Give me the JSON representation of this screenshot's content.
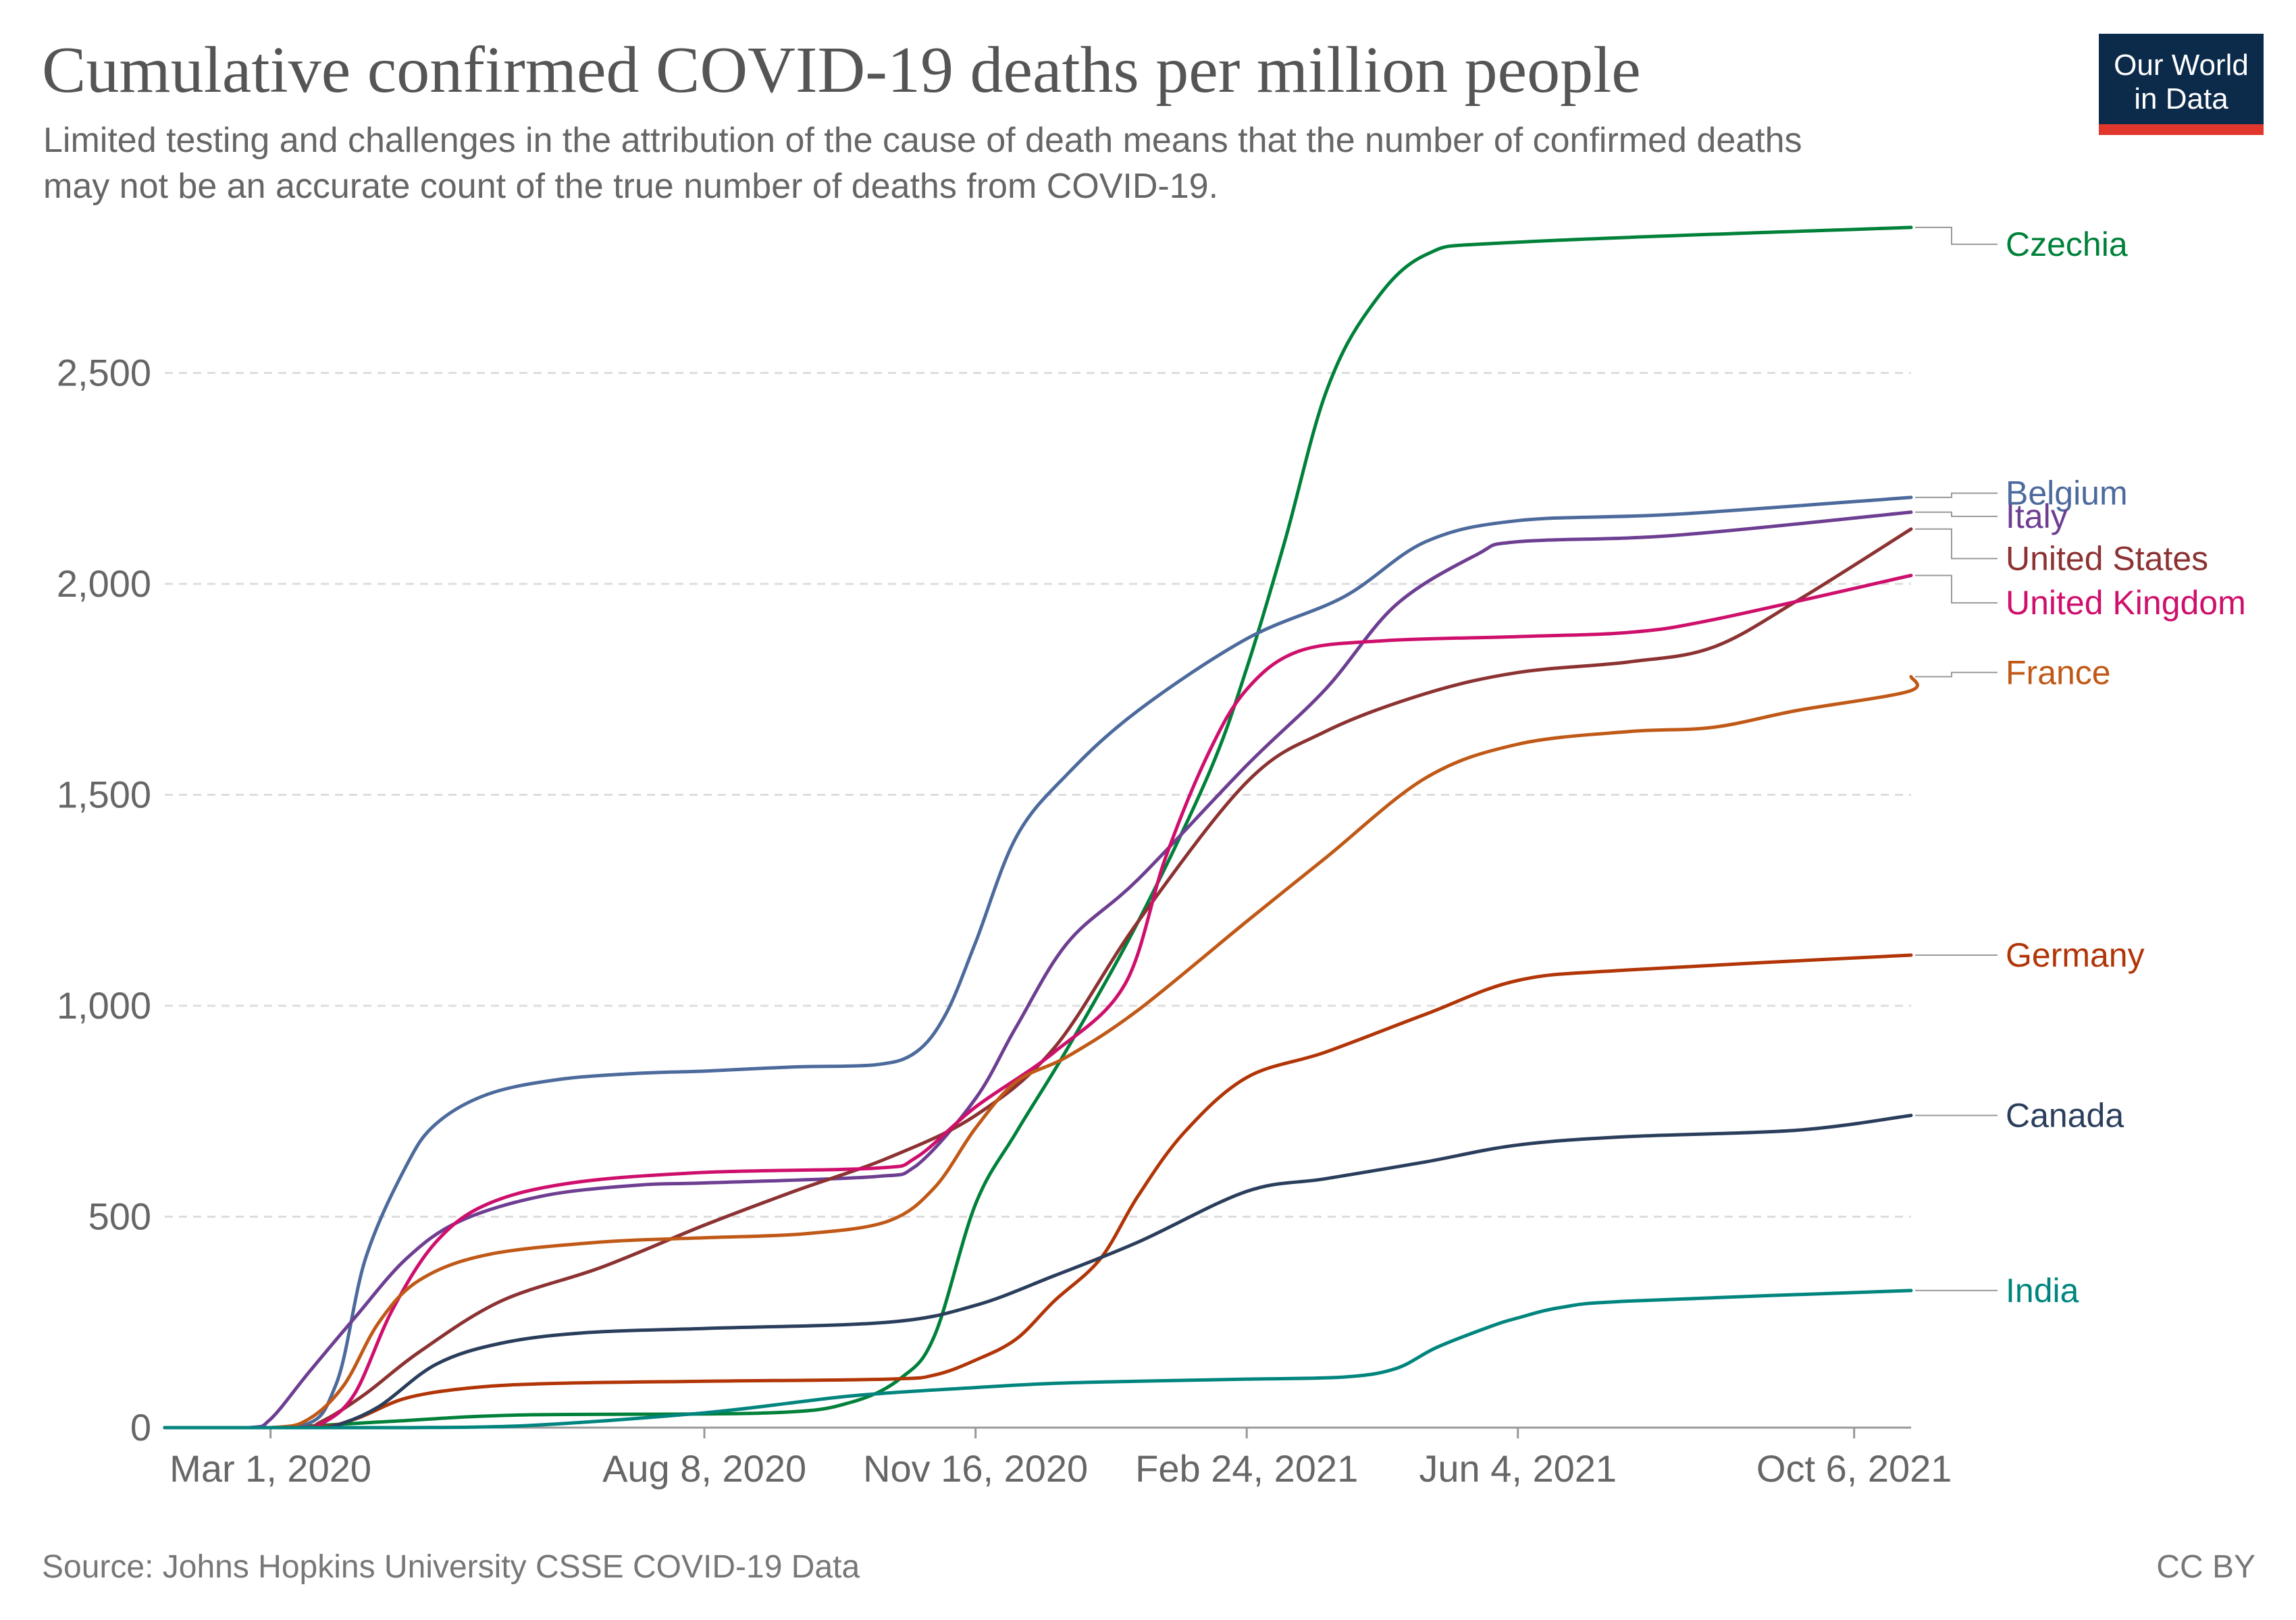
{
  "header": {
    "title": "Cumulative confirmed COVID-19 deaths per million people",
    "subtitle_line1": "Limited testing and challenges in the attribution of the cause of death means that the number of confirmed deaths",
    "subtitle_line2": "may not be an accurate count of the true number of deaths from COVID-19.",
    "logo_line1": "Our World",
    "logo_line2": "in Data"
  },
  "footer": {
    "source": "Source: Johns Hopkins University CSSE COVID-19 Data",
    "license": "CC BY"
  },
  "chart_data": {
    "type": "line",
    "title": "Cumulative confirmed COVID-19 deaths per million people",
    "xlabel": "",
    "ylabel": "",
    "x_range": [
      "2020-01-22",
      "2021-10-27"
    ],
    "ylim": [
      0,
      2800
    ],
    "y_ticks": [
      0,
      500,
      1000,
      1500,
      2000,
      2500
    ],
    "y_tick_labels": [
      "0",
      "500",
      "1,000",
      "1,500",
      "2,000",
      "2,500"
    ],
    "x_ticks": [
      "2020-03-01",
      "2020-08-08",
      "2020-11-16",
      "2021-02-24",
      "2021-06-04",
      "2021-10-06"
    ],
    "x_tick_labels": [
      "Mar 1, 2020",
      "Aug 8, 2020",
      "Nov 16, 2020",
      "Feb 24, 2021",
      "Jun 4, 2021",
      "Oct 6, 2021"
    ],
    "grid": "horizontal dashed",
    "legend": "labels at line ends, right",
    "series": [
      {
        "name": "Czechia",
        "color": "#00813a",
        "label_value": 2805,
        "points": [
          [
            "2020-01-22",
            0
          ],
          [
            "2020-03-01",
            0
          ],
          [
            "2020-04-15",
            15
          ],
          [
            "2020-06-01",
            30
          ],
          [
            "2020-09-01",
            35
          ],
          [
            "2020-10-01",
            60
          ],
          [
            "2020-10-20",
            120
          ],
          [
            "2020-11-01",
            220
          ],
          [
            "2020-11-16",
            530
          ],
          [
            "2020-12-01",
            700
          ],
          [
            "2020-12-20",
            900
          ],
          [
            "2021-01-15",
            1200
          ],
          [
            "2021-02-10",
            1550
          ],
          [
            "2021-02-24",
            1800
          ],
          [
            "2021-03-10",
            2100
          ],
          [
            "2021-03-25",
            2450
          ],
          [
            "2021-04-10",
            2650
          ],
          [
            "2021-05-01",
            2780
          ],
          [
            "2021-06-04",
            2810
          ],
          [
            "2021-10-27",
            2845
          ]
        ]
      },
      {
        "name": "Belgium",
        "color": "#4c6a9c",
        "label_value": 2215,
        "points": [
          [
            "2020-01-22",
            0
          ],
          [
            "2020-03-10",
            0
          ],
          [
            "2020-03-25",
            100
          ],
          [
            "2020-04-05",
            400
          ],
          [
            "2020-04-20",
            620
          ],
          [
            "2020-05-01",
            720
          ],
          [
            "2020-05-20",
            790
          ],
          [
            "2020-06-15",
            825
          ],
          [
            "2020-07-15",
            840
          ],
          [
            "2020-08-08",
            845
          ],
          [
            "2020-09-10",
            855
          ],
          [
            "2020-10-10",
            860
          ],
          [
            "2020-10-25",
            890
          ],
          [
            "2020-11-05",
            980
          ],
          [
            "2020-11-16",
            1150
          ],
          [
            "2020-12-01",
            1400
          ],
          [
            "2020-12-20",
            1550
          ],
          [
            "2021-01-15",
            1700
          ],
          [
            "2021-02-24",
            1870
          ],
          [
            "2021-04-01",
            1970
          ],
          [
            "2021-05-01",
            2100
          ],
          [
            "2021-06-04",
            2150
          ],
          [
            "2021-08-01",
            2165
          ],
          [
            "2021-10-27",
            2205
          ]
        ]
      },
      {
        "name": "Italy",
        "color": "#6d3e91",
        "label_value": 2160,
        "points": [
          [
            "2020-01-22",
            0
          ],
          [
            "2020-02-22",
            0
          ],
          [
            "2020-03-01",
            20
          ],
          [
            "2020-03-15",
            130
          ],
          [
            "2020-04-01",
            260
          ],
          [
            "2020-04-20",
            400
          ],
          [
            "2020-05-10",
            490
          ],
          [
            "2020-06-10",
            550
          ],
          [
            "2020-07-15",
            575
          ],
          [
            "2020-08-08",
            580
          ],
          [
            "2020-10-10",
            595
          ],
          [
            "2020-10-25",
            620
          ],
          [
            "2020-11-16",
            780
          ],
          [
            "2020-12-01",
            950
          ],
          [
            "2020-12-20",
            1150
          ],
          [
            "2021-01-15",
            1300
          ],
          [
            "2021-02-24",
            1570
          ],
          [
            "2021-03-25",
            1750
          ],
          [
            "2021-04-20",
            1950
          ],
          [
            "2021-05-20",
            2070
          ],
          [
            "2021-06-04",
            2100
          ],
          [
            "2021-08-01",
            2115
          ],
          [
            "2021-10-27",
            2170
          ]
        ]
      },
      {
        "name": "United States",
        "color": "#8c3232",
        "label_value": 2060,
        "points": [
          [
            "2020-01-22",
            0
          ],
          [
            "2020-03-10",
            0
          ],
          [
            "2020-03-20",
            15
          ],
          [
            "2020-04-05",
            80
          ],
          [
            "2020-04-25",
            180
          ],
          [
            "2020-05-25",
            300
          ],
          [
            "2020-07-01",
            380
          ],
          [
            "2020-08-08",
            480
          ],
          [
            "2020-09-10",
            560
          ],
          [
            "2020-10-15",
            640
          ],
          [
            "2020-11-16",
            740
          ],
          [
            "2020-12-15",
            900
          ],
          [
            "2021-01-15",
            1200
          ],
          [
            "2021-02-24",
            1530
          ],
          [
            "2021-03-25",
            1650
          ],
          [
            "2021-05-01",
            1740
          ],
          [
            "2021-06-04",
            1790
          ],
          [
            "2021-07-15",
            1815
          ],
          [
            "2021-08-15",
            1850
          ],
          [
            "2021-09-15",
            1960
          ],
          [
            "2021-10-27",
            2130
          ]
        ]
      },
      {
        "name": "United Kingdom",
        "color": "#ce0f6c",
        "label_value": 1955,
        "points": [
          [
            "2020-01-22",
            0
          ],
          [
            "2020-03-10",
            0
          ],
          [
            "2020-03-20",
            10
          ],
          [
            "2020-04-01",
            80
          ],
          [
            "2020-04-15",
            280
          ],
          [
            "2020-05-01",
            440
          ],
          [
            "2020-05-20",
            530
          ],
          [
            "2020-06-20",
            580
          ],
          [
            "2020-08-08",
            605
          ],
          [
            "2020-10-10",
            615
          ],
          [
            "2020-10-25",
            640
          ],
          [
            "2020-11-16",
            760
          ],
          [
            "2020-12-15",
            890
          ],
          [
            "2021-01-10",
            1050
          ],
          [
            "2021-01-25",
            1350
          ],
          [
            "2021-02-10",
            1600
          ],
          [
            "2021-02-24",
            1750
          ],
          [
            "2021-03-15",
            1840
          ],
          [
            "2021-04-15",
            1865
          ],
          [
            "2021-06-04",
            1875
          ],
          [
            "2021-07-15",
            1885
          ],
          [
            "2021-08-15",
            1915
          ],
          [
            "2021-10-27",
            2020
          ]
        ]
      },
      {
        "name": "France",
        "color": "#c05917",
        "label_value": 1790,
        "points": [
          [
            "2020-01-22",
            0
          ],
          [
            "2020-03-01",
            0
          ],
          [
            "2020-03-15",
            20
          ],
          [
            "2020-03-28",
            100
          ],
          [
            "2020-04-10",
            250
          ],
          [
            "2020-04-25",
            350
          ],
          [
            "2020-05-20",
            410
          ],
          [
            "2020-07-01",
            440
          ],
          [
            "2020-08-08",
            450
          ],
          [
            "2020-09-15",
            460
          ],
          [
            "2020-10-15",
            490
          ],
          [
            "2020-11-01",
            570
          ],
          [
            "2020-11-16",
            710
          ],
          [
            "2020-12-01",
            820
          ],
          [
            "2020-12-20",
            880
          ],
          [
            "2021-01-15",
            990
          ],
          [
            "2021-02-24",
            1200
          ],
          [
            "2021-03-25",
            1350
          ],
          [
            "2021-05-01",
            1540
          ],
          [
            "2021-06-04",
            1620
          ],
          [
            "2021-07-15",
            1650
          ],
          [
            "2021-08-15",
            1660
          ],
          [
            "2021-09-15",
            1700
          ],
          [
            "2021-10-26",
            1745
          ],
          [
            "2021-10-27",
            1780
          ]
        ]
      },
      {
        "name": "Germany",
        "color": "#b13507",
        "label_value": 1120,
        "points": [
          [
            "2020-01-22",
            0
          ],
          [
            "2020-03-15",
            0
          ],
          [
            "2020-04-01",
            20
          ],
          [
            "2020-04-20",
            70
          ],
          [
            "2020-05-15",
            95
          ],
          [
            "2020-06-15",
            105
          ],
          [
            "2020-08-08",
            110
          ],
          [
            "2020-10-15",
            115
          ],
          [
            "2020-11-01",
            125
          ],
          [
            "2020-11-16",
            160
          ],
          [
            "2020-12-01",
            210
          ],
          [
            "2020-12-15",
            300
          ],
          [
            "2021-01-01",
            400
          ],
          [
            "2021-01-15",
            550
          ],
          [
            "2021-02-01",
            700
          ],
          [
            "2021-02-24",
            830
          ],
          [
            "2021-03-25",
            890
          ],
          [
            "2021-05-01",
            980
          ],
          [
            "2021-06-04",
            1060
          ],
          [
            "2021-07-15",
            1085
          ],
          [
            "2021-10-27",
            1120
          ]
        ]
      },
      {
        "name": "Canada",
        "color": "#2a3e5c",
        "label_value": 740,
        "points": [
          [
            "2020-01-22",
            0
          ],
          [
            "2020-03-15",
            0
          ],
          [
            "2020-03-25",
            5
          ],
          [
            "2020-04-10",
            50
          ],
          [
            "2020-05-01",
            150
          ],
          [
            "2020-05-25",
            200
          ],
          [
            "2020-06-25",
            225
          ],
          [
            "2020-08-08",
            235
          ],
          [
            "2020-10-15",
            250
          ],
          [
            "2020-11-16",
            290
          ],
          [
            "2020-12-15",
            360
          ],
          [
            "2021-01-15",
            440
          ],
          [
            "2021-02-24",
            560
          ],
          [
            "2021-03-25",
            590
          ],
          [
            "2021-05-01",
            630
          ],
          [
            "2021-06-04",
            670
          ],
          [
            "2021-07-15",
            690
          ],
          [
            "2021-09-15",
            705
          ],
          [
            "2021-10-27",
            740
          ]
        ]
      },
      {
        "name": "India",
        "color": "#00847e",
        "label_value": 325,
        "points": [
          [
            "2020-01-22",
            0
          ],
          [
            "2020-04-15",
            0
          ],
          [
            "2020-06-01",
            4
          ],
          [
            "2020-08-08",
            35
          ],
          [
            "2020-10-01",
            75
          ],
          [
            "2020-11-16",
            95
          ],
          [
            "2020-12-15",
            105
          ],
          [
            "2021-01-15",
            110
          ],
          [
            "2021-02-24",
            115
          ],
          [
            "2021-04-01",
            120
          ],
          [
            "2021-04-20",
            140
          ],
          [
            "2021-05-05",
            190
          ],
          [
            "2021-05-25",
            240
          ],
          [
            "2021-06-04",
            260
          ],
          [
            "2021-06-20",
            285
          ],
          [
            "2021-07-15",
            300
          ],
          [
            "2021-10-27",
            325
          ]
        ]
      }
    ]
  }
}
